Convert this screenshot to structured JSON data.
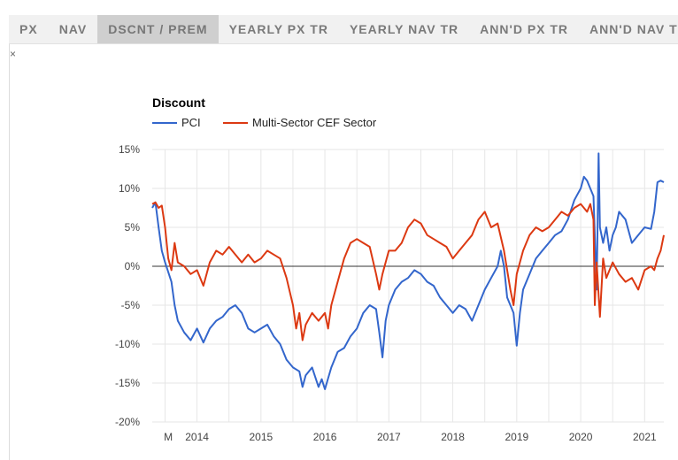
{
  "tabs": [
    {
      "label": "PX",
      "active": false
    },
    {
      "label": "NAV",
      "active": false
    },
    {
      "label": "DSCNT / PREM",
      "active": true
    },
    {
      "label": "YEARLY PX TR",
      "active": false
    },
    {
      "label": "YEARLY NAV TR",
      "active": false
    },
    {
      "label": "ANN'D PX TR",
      "active": false
    },
    {
      "label": "ANN'D NAV TR",
      "active": false
    }
  ],
  "close_label": "×",
  "colors": {
    "pci": "#3366cc",
    "sector": "#dc3912",
    "grid": "#e6e6e6",
    "baseline": "#333333"
  },
  "chart_data": {
    "type": "line",
    "title": "Discount",
    "xlabel": "",
    "ylabel": "",
    "ylim": [
      -20,
      15
    ],
    "yticks": [
      15,
      10,
      5,
      0,
      -5,
      -10,
      -15,
      -20
    ],
    "ytick_labels": [
      "15%",
      "10%",
      "5%",
      "0%",
      "-5%",
      "-10%",
      "-15%",
      "-20%"
    ],
    "xlim": [
      2013.3,
      2021.3
    ],
    "xticks": [
      {
        "label": "M",
        "x": 2013.55
      },
      {
        "label": "2014",
        "x": 2014.0
      },
      {
        "label": "2015",
        "x": 2015.0
      },
      {
        "label": "2016",
        "x": 2016.0
      },
      {
        "label": "2017",
        "x": 2017.0
      },
      {
        "label": "2018",
        "x": 2018.0
      },
      {
        "label": "2019",
        "x": 2019.0
      },
      {
        "label": "2020",
        "x": 2020.0
      },
      {
        "label": "2021",
        "x": 2021.0
      }
    ],
    "series": [
      {
        "name": "PCI",
        "points": [
          [
            2013.3,
            7.5
          ],
          [
            2013.35,
            8.2
          ],
          [
            2013.4,
            5
          ],
          [
            2013.45,
            2
          ],
          [
            2013.5,
            0.5
          ],
          [
            2013.6,
            -2
          ],
          [
            2013.65,
            -5
          ],
          [
            2013.7,
            -7
          ],
          [
            2013.8,
            -8.5
          ],
          [
            2013.9,
            -9.5
          ],
          [
            2014.0,
            -8
          ],
          [
            2014.1,
            -9.8
          ],
          [
            2014.2,
            -8
          ],
          [
            2014.3,
            -7
          ],
          [
            2014.4,
            -6.5
          ],
          [
            2014.5,
            -5.5
          ],
          [
            2014.6,
            -5
          ],
          [
            2014.7,
            -6
          ],
          [
            2014.8,
            -8
          ],
          [
            2014.9,
            -8.5
          ],
          [
            2015.0,
            -8
          ],
          [
            2015.1,
            -7.5
          ],
          [
            2015.2,
            -9
          ],
          [
            2015.3,
            -10
          ],
          [
            2015.4,
            -12
          ],
          [
            2015.5,
            -13
          ],
          [
            2015.6,
            -13.5
          ],
          [
            2015.65,
            -15.5
          ],
          [
            2015.7,
            -14
          ],
          [
            2015.8,
            -13
          ],
          [
            2015.9,
            -15.5
          ],
          [
            2015.95,
            -14.5
          ],
          [
            2016.0,
            -15.8
          ],
          [
            2016.1,
            -13
          ],
          [
            2016.2,
            -11
          ],
          [
            2016.3,
            -10.5
          ],
          [
            2016.4,
            -9
          ],
          [
            2016.5,
            -8
          ],
          [
            2016.6,
            -6
          ],
          [
            2016.7,
            -5
          ],
          [
            2016.8,
            -5.5
          ],
          [
            2016.85,
            -8.5
          ],
          [
            2016.9,
            -11.7
          ],
          [
            2016.95,
            -7
          ],
          [
            2017.0,
            -5
          ],
          [
            2017.1,
            -3
          ],
          [
            2017.2,
            -2
          ],
          [
            2017.3,
            -1.5
          ],
          [
            2017.4,
            -0.5
          ],
          [
            2017.5,
            -1
          ],
          [
            2017.6,
            -2
          ],
          [
            2017.7,
            -2.5
          ],
          [
            2017.8,
            -4
          ],
          [
            2017.9,
            -5
          ],
          [
            2018.0,
            -6
          ],
          [
            2018.1,
            -5
          ],
          [
            2018.2,
            -5.5
          ],
          [
            2018.3,
            -7
          ],
          [
            2018.4,
            -5
          ],
          [
            2018.5,
            -3
          ],
          [
            2018.6,
            -1.5
          ],
          [
            2018.7,
            0
          ],
          [
            2018.75,
            2
          ],
          [
            2018.8,
            0
          ],
          [
            2018.85,
            -4
          ],
          [
            2018.9,
            -5
          ],
          [
            2018.95,
            -6
          ],
          [
            2019.0,
            -10.2
          ],
          [
            2019.05,
            -6
          ],
          [
            2019.1,
            -3
          ],
          [
            2019.2,
            -1
          ],
          [
            2019.3,
            1
          ],
          [
            2019.4,
            2
          ],
          [
            2019.5,
            3
          ],
          [
            2019.6,
            4
          ],
          [
            2019.7,
            4.5
          ],
          [
            2019.8,
            6
          ],
          [
            2019.9,
            8.5
          ],
          [
            2020.0,
            10
          ],
          [
            2020.05,
            11.5
          ],
          [
            2020.1,
            11
          ],
          [
            2020.15,
            10
          ],
          [
            2020.2,
            9
          ],
          [
            2020.25,
            -3
          ],
          [
            2020.28,
            14.5
          ],
          [
            2020.3,
            5
          ],
          [
            2020.35,
            3
          ],
          [
            2020.4,
            5
          ],
          [
            2020.45,
            2
          ],
          [
            2020.5,
            4
          ],
          [
            2020.55,
            5
          ],
          [
            2020.6,
            7
          ],
          [
            2020.7,
            6
          ],
          [
            2020.8,
            3
          ],
          [
            2020.9,
            4
          ],
          [
            2021.0,
            5
          ],
          [
            2021.1,
            4.8
          ],
          [
            2021.15,
            7
          ],
          [
            2021.2,
            10.8
          ],
          [
            2021.25,
            11
          ],
          [
            2021.3,
            10.8
          ]
        ]
      },
      {
        "name": "Multi-Sector CEF Sector",
        "points": [
          [
            2013.3,
            8
          ],
          [
            2013.35,
            8.2
          ],
          [
            2013.4,
            7.5
          ],
          [
            2013.45,
            7.8
          ],
          [
            2013.5,
            5
          ],
          [
            2013.55,
            1
          ],
          [
            2013.6,
            -0.5
          ],
          [
            2013.65,
            3
          ],
          [
            2013.7,
            0.5
          ],
          [
            2013.8,
            0
          ],
          [
            2013.9,
            -1
          ],
          [
            2014.0,
            -0.5
          ],
          [
            2014.1,
            -2.5
          ],
          [
            2014.2,
            0.5
          ],
          [
            2014.3,
            2
          ],
          [
            2014.4,
            1.5
          ],
          [
            2014.5,
            2.5
          ],
          [
            2014.6,
            1.5
          ],
          [
            2014.7,
            0.5
          ],
          [
            2014.8,
            1.5
          ],
          [
            2014.9,
            0.5
          ],
          [
            2015.0,
            1
          ],
          [
            2015.1,
            2
          ],
          [
            2015.2,
            1.5
          ],
          [
            2015.3,
            1
          ],
          [
            2015.4,
            -1.5
          ],
          [
            2015.5,
            -5
          ],
          [
            2015.55,
            -8
          ],
          [
            2015.6,
            -6
          ],
          [
            2015.65,
            -9.5
          ],
          [
            2015.7,
            -7.5
          ],
          [
            2015.8,
            -6
          ],
          [
            2015.9,
            -7
          ],
          [
            2016.0,
            -6
          ],
          [
            2016.05,
            -8
          ],
          [
            2016.1,
            -5
          ],
          [
            2016.2,
            -2
          ],
          [
            2016.3,
            1
          ],
          [
            2016.4,
            3
          ],
          [
            2016.5,
            3.5
          ],
          [
            2016.6,
            3
          ],
          [
            2016.7,
            2.5
          ],
          [
            2016.8,
            -1
          ],
          [
            2016.85,
            -3
          ],
          [
            2016.9,
            -1
          ],
          [
            2017.0,
            2
          ],
          [
            2017.1,
            2
          ],
          [
            2017.2,
            3
          ],
          [
            2017.3,
            5
          ],
          [
            2017.4,
            6
          ],
          [
            2017.5,
            5.5
          ],
          [
            2017.6,
            4
          ],
          [
            2017.7,
            3.5
          ],
          [
            2017.8,
            3
          ],
          [
            2017.9,
            2.5
          ],
          [
            2018.0,
            1
          ],
          [
            2018.1,
            2
          ],
          [
            2018.2,
            3
          ],
          [
            2018.3,
            4
          ],
          [
            2018.4,
            6
          ],
          [
            2018.5,
            7
          ],
          [
            2018.6,
            5
          ],
          [
            2018.7,
            5.5
          ],
          [
            2018.8,
            2
          ],
          [
            2018.9,
            -3
          ],
          [
            2018.95,
            -5
          ],
          [
            2019.0,
            -1
          ],
          [
            2019.1,
            2
          ],
          [
            2019.2,
            4
          ],
          [
            2019.3,
            5
          ],
          [
            2019.4,
            4.5
          ],
          [
            2019.5,
            5
          ],
          [
            2019.6,
            6
          ],
          [
            2019.7,
            7
          ],
          [
            2019.8,
            6.5
          ],
          [
            2019.9,
            7.5
          ],
          [
            2020.0,
            8
          ],
          [
            2020.1,
            7
          ],
          [
            2020.15,
            8
          ],
          [
            2020.2,
            6
          ],
          [
            2020.22,
            -5
          ],
          [
            2020.25,
            0.5
          ],
          [
            2020.3,
            -6.5
          ],
          [
            2020.35,
            1
          ],
          [
            2020.4,
            -1.5
          ],
          [
            2020.5,
            0.5
          ],
          [
            2020.6,
            -1
          ],
          [
            2020.7,
            -2
          ],
          [
            2020.8,
            -1.5
          ],
          [
            2020.9,
            -3
          ],
          [
            2021.0,
            -0.5
          ],
          [
            2021.1,
            0
          ],
          [
            2021.15,
            -0.5
          ],
          [
            2021.2,
            1
          ],
          [
            2021.25,
            2
          ],
          [
            2021.3,
            4
          ]
        ]
      }
    ]
  }
}
